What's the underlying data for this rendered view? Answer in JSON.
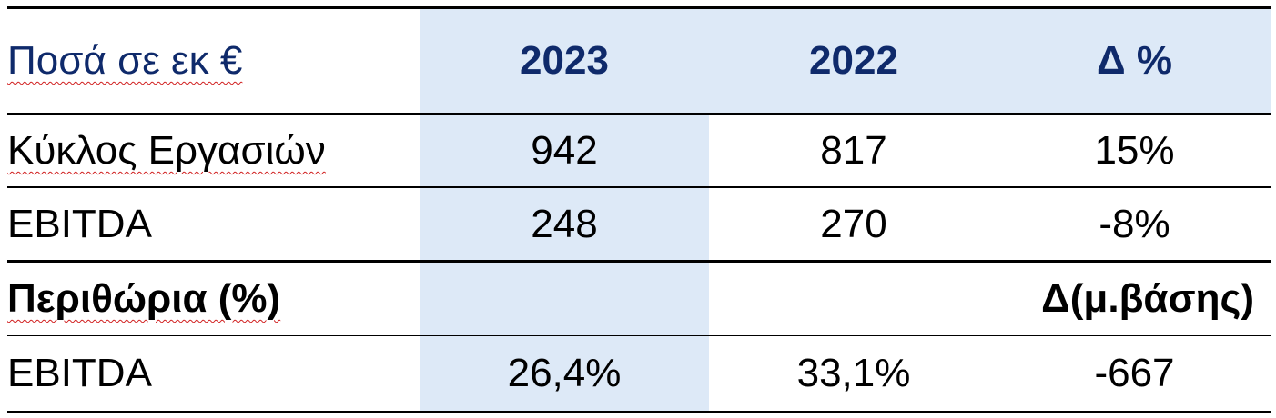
{
  "table": {
    "header": {
      "label": "Ποσά σε εκ €",
      "col_2023": "2023",
      "col_2022": "2022",
      "col_delta": "Δ %"
    },
    "rows": [
      {
        "label": "Κύκλος Εργασιών",
        "v2023": "942",
        "v2022": "817",
        "delta": "15%"
      },
      {
        "label": "EBITDA",
        "v2023": "248",
        "v2022": "270",
        "delta": "-8%"
      }
    ],
    "margins_header": {
      "label": "Περιθώρια (%)",
      "delta": "Δ(μ.βάσης)"
    },
    "margins_rows": [
      {
        "label": "EBITDA",
        "v2023": "26,4%",
        "v2022": "33,1%",
        "delta": "-667"
      }
    ]
  },
  "colors": {
    "header_text": "#0f2a6b",
    "shade": "#dde9f7",
    "spell_underline": "#d11f1f"
  }
}
